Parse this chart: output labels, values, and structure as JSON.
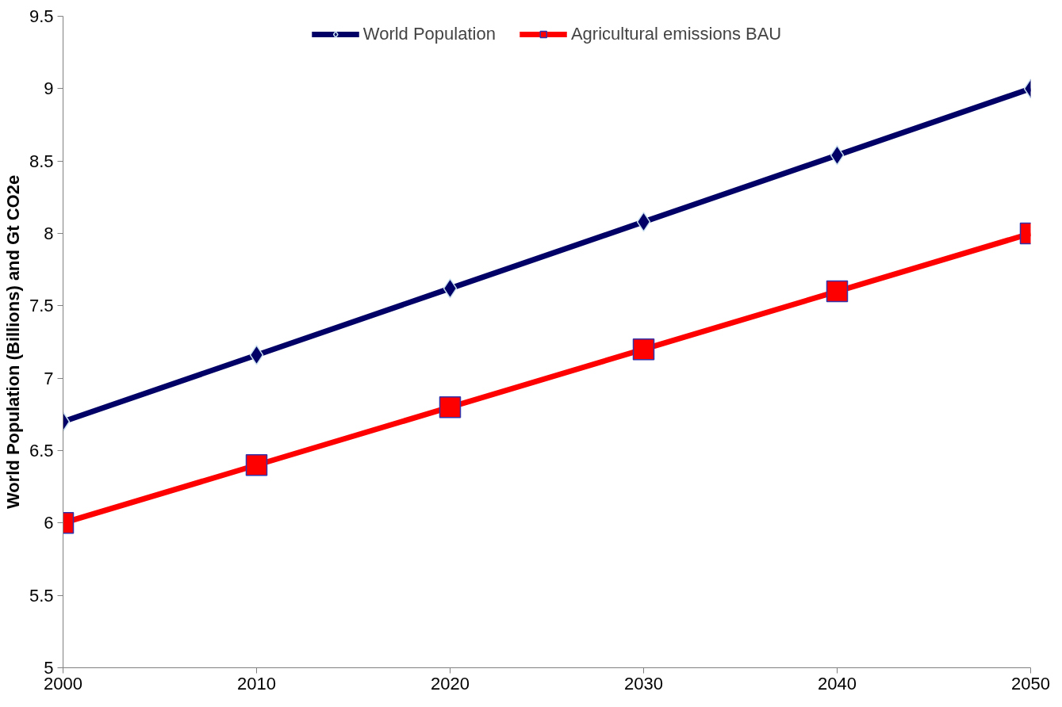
{
  "chart_data": {
    "type": "line",
    "ylabel": "World Population (Billions) and Gt CO2e",
    "x": [
      2000,
      2010,
      2020,
      2030,
      2040,
      2050
    ],
    "series": [
      {
        "name": "World Population",
        "color": "#000066",
        "marker": "diamond",
        "values": [
          6.7,
          7.16,
          7.62,
          8.08,
          8.54,
          9.0
        ]
      },
      {
        "name": "Agricultural emissions BAU",
        "color": "#ff0000",
        "marker": "square",
        "values": [
          6.0,
          6.4,
          6.8,
          7.2,
          7.6,
          8.0
        ]
      }
    ],
    "xlim": [
      2000,
      2050
    ],
    "xticks": [
      2000,
      2010,
      2020,
      2030,
      2040,
      2050
    ],
    "ylim": [
      5,
      9.5
    ],
    "yticks": [
      5,
      5.5,
      6,
      6.5,
      7,
      7.5,
      8,
      8.5,
      9,
      9.5
    ],
    "grid": false,
    "legend": "top",
    "line_style": "solid"
  }
}
